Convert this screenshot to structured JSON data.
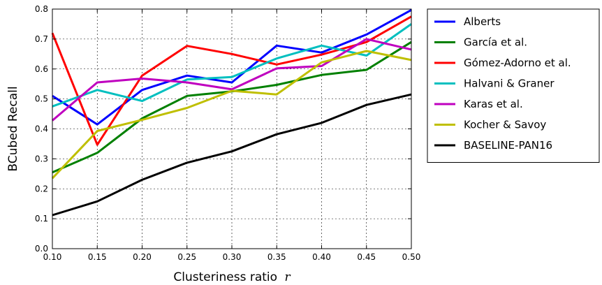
{
  "chart_data": {
    "type": "line",
    "xlabel": "Clusteriness ratio",
    "xlabel_var": "r",
    "ylabel": "BCubed Recall",
    "x": [
      0.1,
      0.15,
      0.2,
      0.25,
      0.3,
      0.35,
      0.4,
      0.45,
      0.5
    ],
    "xlim": [
      0.1,
      0.5
    ],
    "ylim": [
      0.0,
      0.8
    ],
    "x_ticks": [
      "0.10",
      "0.15",
      "0.20",
      "0.25",
      "0.30",
      "0.35",
      "0.40",
      "0.45",
      "0.50"
    ],
    "y_ticks": [
      "0.0",
      "0.1",
      "0.2",
      "0.3",
      "0.4",
      "0.5",
      "0.6",
      "0.7",
      "0.8"
    ],
    "grid": true,
    "legend_position": "outside-right",
    "series": [
      {
        "name": "Alberts",
        "color": "#0000ff",
        "values": [
          0.51,
          0.415,
          0.53,
          0.578,
          0.555,
          0.678,
          0.655,
          0.715,
          0.797
        ]
      },
      {
        "name": "García et al.",
        "color": "#008000",
        "values": [
          0.255,
          0.32,
          0.435,
          0.51,
          0.525,
          0.547,
          0.58,
          0.597,
          0.69
        ]
      },
      {
        "name": "Gómez-Adorno et al.",
        "color": "#ff0000",
        "values": [
          0.72,
          0.347,
          0.578,
          0.677,
          0.65,
          0.615,
          0.648,
          0.69,
          0.775
        ]
      },
      {
        "name": "Halvani & Graner",
        "color": "#00bfbf",
        "values": [
          0.475,
          0.53,
          0.493,
          0.565,
          0.573,
          0.635,
          0.678,
          0.645,
          0.75
        ]
      },
      {
        "name": "Karas et al.",
        "color": "#bf00bf",
        "values": [
          0.428,
          0.555,
          0.568,
          0.555,
          0.532,
          0.602,
          0.61,
          0.7,
          0.665
        ]
      },
      {
        "name": "Kocher & Savoy",
        "color": "#bfbf00",
        "values": [
          0.235,
          0.393,
          0.43,
          0.47,
          0.527,
          0.515,
          0.622,
          0.66,
          0.63
        ]
      },
      {
        "name": "BASELINE-PAN16",
        "color": "#000000",
        "values": [
          0.112,
          0.158,
          0.23,
          0.287,
          0.325,
          0.382,
          0.42,
          0.48,
          0.515
        ]
      }
    ]
  }
}
